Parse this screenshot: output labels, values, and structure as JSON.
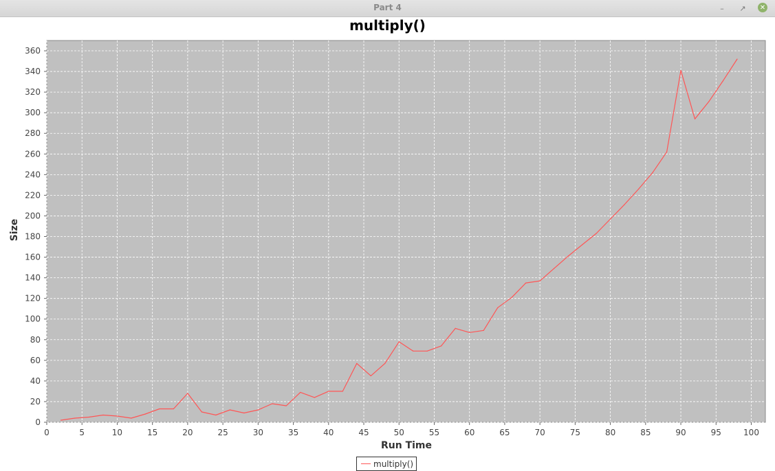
{
  "window": {
    "title": "Part 4",
    "minimize_icon": "minimize-icon",
    "maximize_icon": "maximize-icon",
    "close_icon": "close-icon"
  },
  "chart_data": {
    "type": "line",
    "title": "multiply()",
    "xlabel": "Run Time",
    "ylabel": "Size",
    "xlim": [
      0,
      102
    ],
    "ylim": [
      0,
      370
    ],
    "xticks": [
      0,
      5,
      10,
      15,
      20,
      25,
      30,
      35,
      40,
      45,
      50,
      55,
      60,
      65,
      70,
      75,
      80,
      85,
      90,
      95,
      100
    ],
    "yticks": [
      0,
      20,
      40,
      60,
      80,
      100,
      120,
      140,
      160,
      180,
      200,
      220,
      240,
      260,
      280,
      300,
      320,
      340,
      360
    ],
    "grid": true,
    "legend_position": "bottom-center",
    "colors": {
      "plot_background": "#c0c0c0",
      "grid": "#ffffff",
      "series": "#ff5555"
    },
    "series": [
      {
        "name": "multiply()",
        "color": "#ff5555",
        "x": [
          2,
          4,
          6,
          8,
          10,
          12,
          14,
          16,
          18,
          20,
          22,
          24,
          26,
          28,
          30,
          32,
          34,
          36,
          38,
          40,
          42,
          44,
          46,
          48,
          50,
          52,
          54,
          56,
          58,
          60,
          62,
          64,
          66,
          68,
          70,
          72,
          74,
          76,
          78,
          80,
          82,
          84,
          86,
          88,
          90,
          92,
          94,
          96,
          98
        ],
        "y": [
          2,
          4,
          5,
          7,
          6,
          4,
          8,
          13,
          13,
          28,
          10,
          7,
          12,
          9,
          12,
          18,
          16,
          29,
          24,
          30,
          30,
          57,
          45,
          57,
          78,
          69,
          69,
          74,
          91,
          87,
          89,
          111,
          121,
          135,
          137,
          149,
          161,
          172,
          183,
          197,
          211,
          226,
          242,
          262,
          341,
          294,
          311,
          331,
          352
        ]
      }
    ]
  }
}
